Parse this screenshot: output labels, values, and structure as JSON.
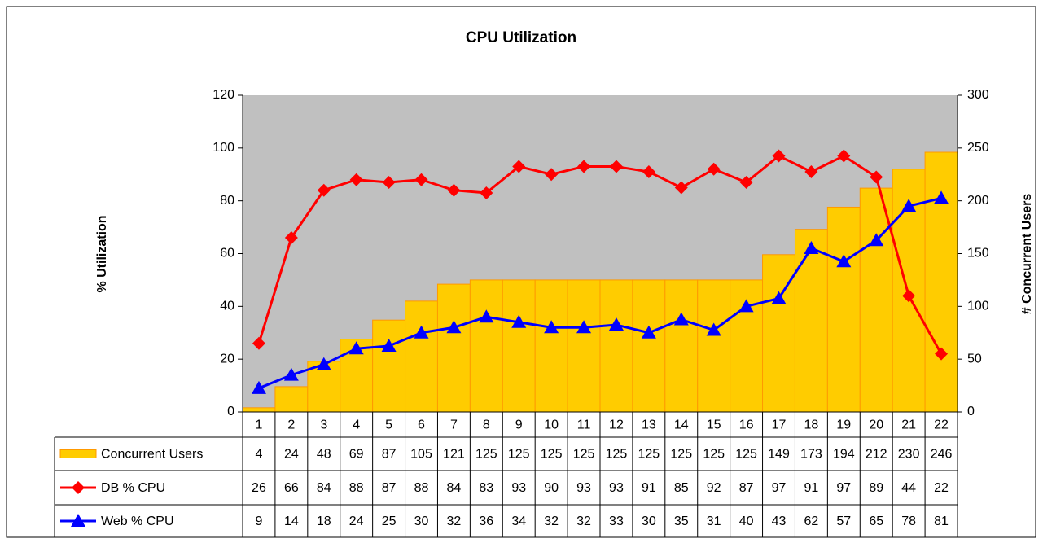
{
  "chart_data": {
    "type": "bar",
    "title": "CPU Utilization",
    "y_label": "% Utilization",
    "y2_label": "# Concurrent Users",
    "categories": [
      "1",
      "2",
      "3",
      "4",
      "5",
      "6",
      "7",
      "8",
      "9",
      "10",
      "11",
      "12",
      "13",
      "14",
      "15",
      "16",
      "17",
      "18",
      "19",
      "20",
      "21",
      "22"
    ],
    "ylim": [
      0,
      120
    ],
    "yticks": [
      0,
      20,
      40,
      60,
      80,
      100,
      120
    ],
    "y2lim": [
      0,
      300
    ],
    "y2ticks": [
      0,
      50,
      100,
      150,
      200,
      250,
      300
    ],
    "plot_background": "#c0c0c0",
    "series": [
      {
        "name": "Concurrent Users",
        "type": "bar",
        "axis": "y2",
        "color": "#ffcc00",
        "edge": "#ff9900",
        "values": [
          4,
          24,
          48,
          69,
          87,
          105,
          121,
          125,
          125,
          125,
          125,
          125,
          125,
          125,
          125,
          125,
          149,
          173,
          194,
          212,
          230,
          246
        ]
      },
      {
        "name": "DB % CPU",
        "type": "line",
        "marker": "diamond",
        "color": "#ff0000",
        "values": [
          26,
          66,
          84,
          88,
          87,
          88,
          84,
          83,
          93,
          90,
          93,
          93,
          91,
          85,
          92,
          87,
          97,
          91,
          97,
          89,
          44,
          22
        ]
      },
      {
        "name": "Web % CPU",
        "type": "line",
        "marker": "triangle",
        "color": "#0000ff",
        "values": [
          9,
          14,
          18,
          24,
          25,
          30,
          32,
          36,
          34,
          32,
          32,
          33,
          30,
          35,
          31,
          40,
          43,
          62,
          57,
          65,
          78,
          81
        ]
      }
    ]
  }
}
